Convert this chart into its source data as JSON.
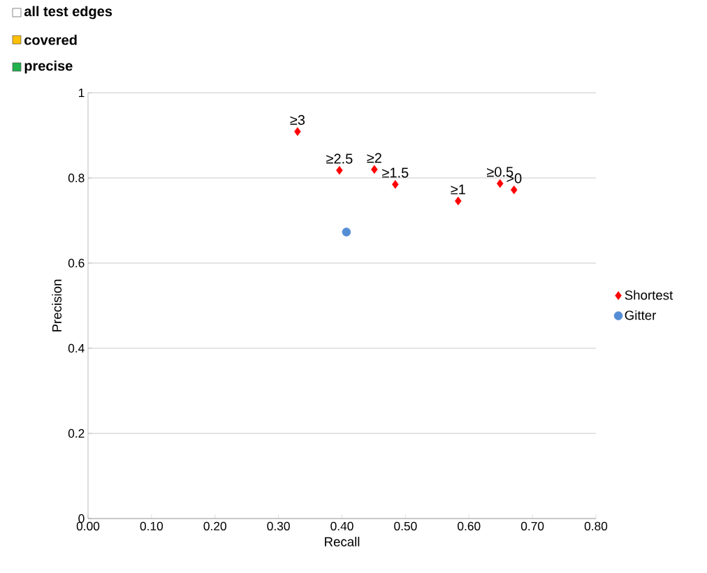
{
  "chart_data": {
    "type": "scatter",
    "xlabel": "Recall",
    "ylabel": "Precision",
    "xlim": [
      0,
      0.8
    ],
    "ylim": [
      0,
      1
    ],
    "xticks": [
      {
        "value": 0,
        "label": "0.00"
      },
      {
        "value": 0.1,
        "label": "0.10"
      },
      {
        "value": 0.2,
        "label": "0.20"
      },
      {
        "value": 0.3,
        "label": "0.30"
      },
      {
        "value": 0.4,
        "label": "0.40"
      },
      {
        "value": 0.5,
        "label": "0.50"
      },
      {
        "value": 0.6,
        "label": "0.60"
      },
      {
        "value": 0.7,
        "label": "0.70"
      },
      {
        "value": 0.8,
        "label": "0.80"
      }
    ],
    "yticks": [
      0,
      0.2,
      0.4,
      0.6,
      0.8,
      1
    ],
    "grid": "y",
    "legend": "right",
    "series": [
      {
        "name": "Shortest",
        "color": "#ff0000",
        "marker": "diamond",
        "x": [
          0.33,
          0.396,
          0.451,
          0.484,
          0.583,
          0.649,
          0.671
        ],
        "values": [
          0.909,
          0.818,
          0.82,
          0.785,
          0.746,
          0.787,
          0.772
        ],
        "value_labels": [
          "≥3",
          "≥2.5",
          "≥2",
          "≥1.5",
          "≥1",
          "≥0.5",
          ">0"
        ]
      },
      {
        "name": "Gitter",
        "color": "#558ed5",
        "marker": "circle",
        "x": [
          0.407
        ],
        "values": [
          0.673
        ]
      },
      {
        "name": "all test edges",
        "color": "#ffffff",
        "marker": "square"
      },
      {
        "name": "covered",
        "color": "#ffc000",
        "marker": "square"
      },
      {
        "name": "precise",
        "color": "#22b14c",
        "marker": "square"
      }
    ]
  }
}
